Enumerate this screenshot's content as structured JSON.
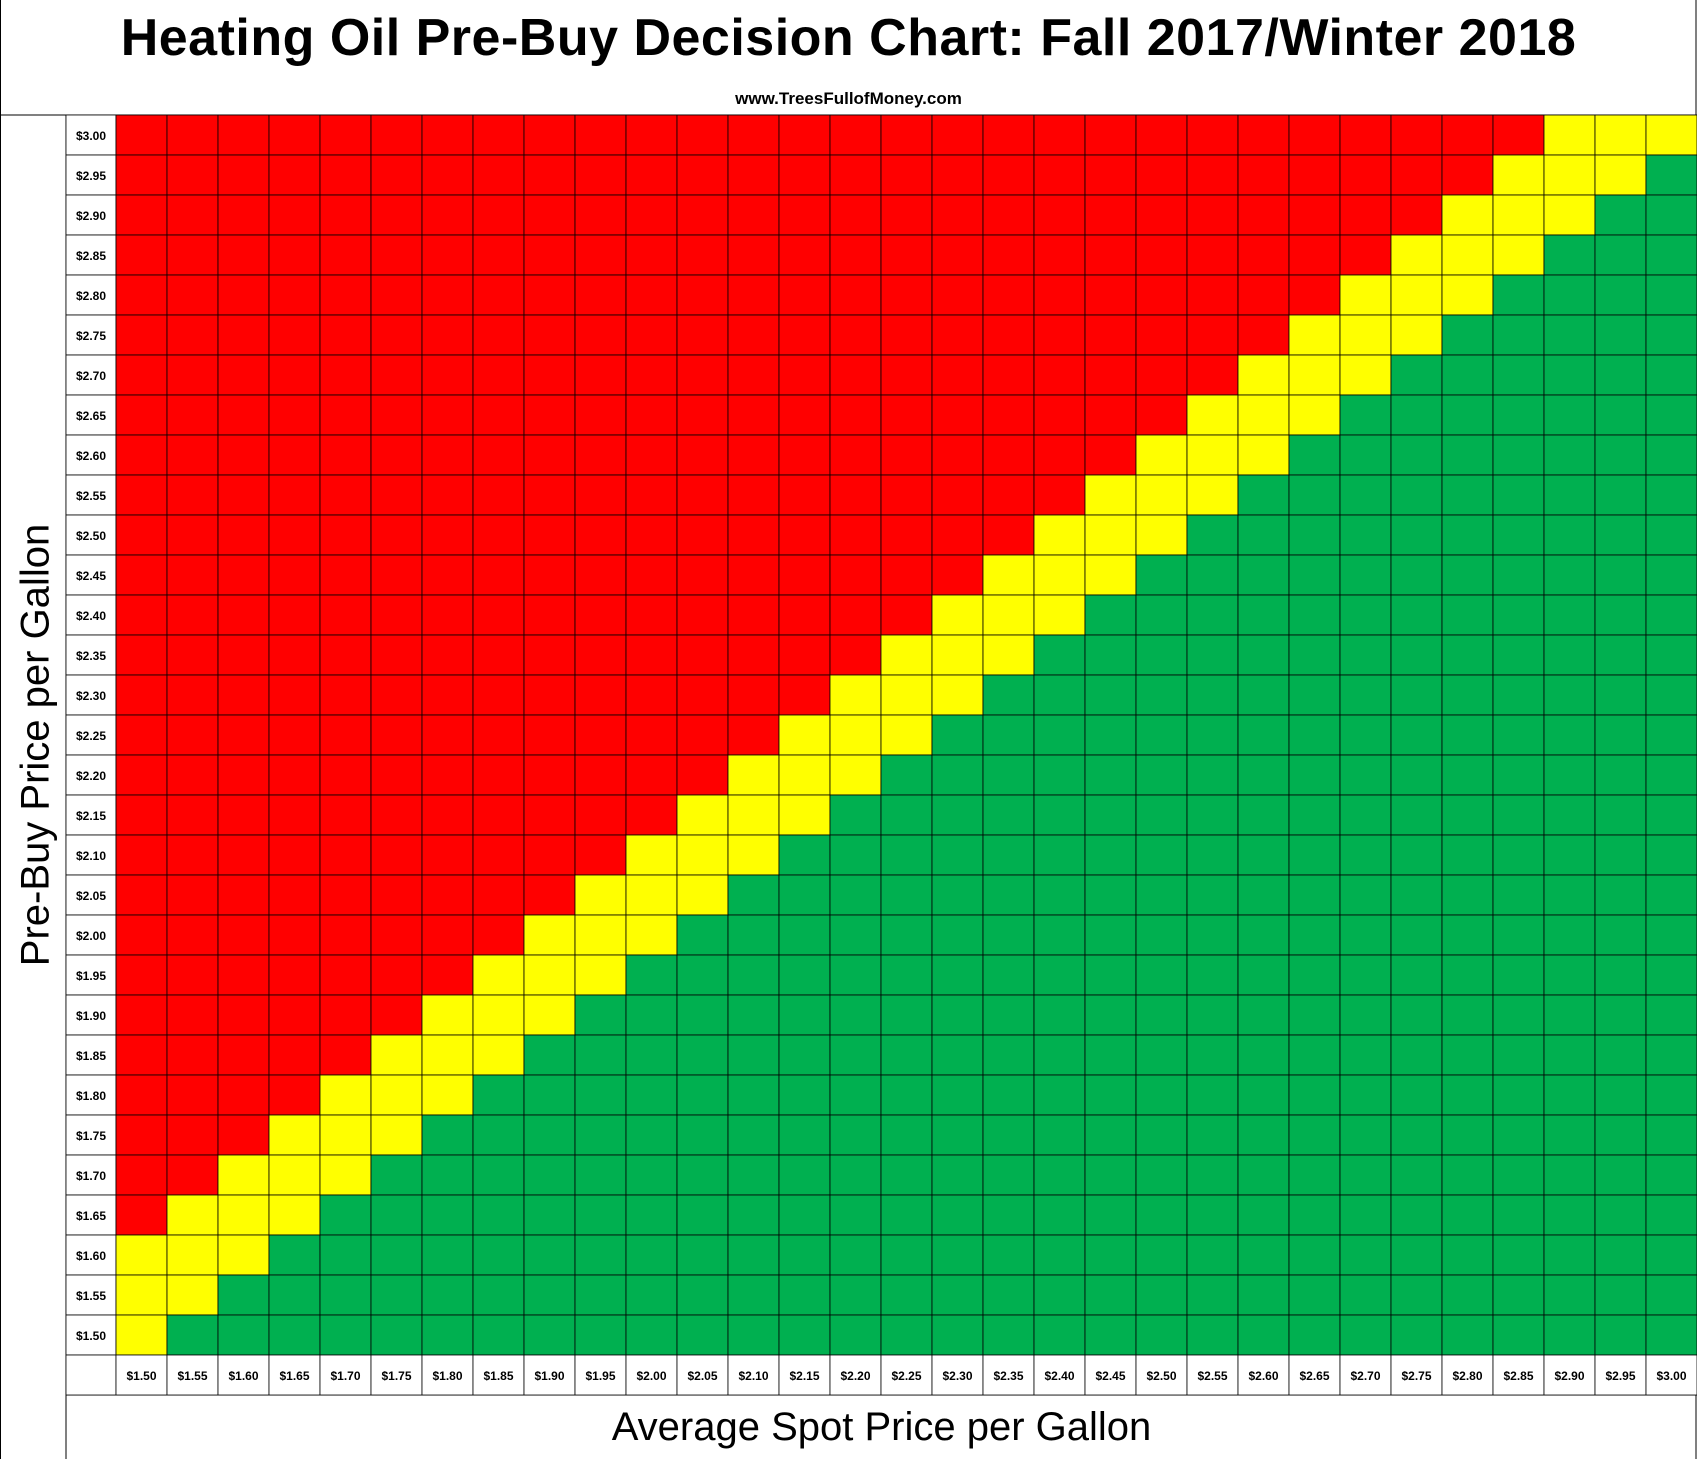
{
  "title": "Heating Oil Pre-Buy Decision Chart: Fall 2017/Winter 2018",
  "subtitle": "www.TreesFullofMoney.com",
  "chart_data": {
    "type": "heatmap",
    "title": "Heating Oil Pre-Buy Decision Chart: Fall 2017/Winter 2018",
    "xlabel": "Average Spot Price per Gallon",
    "ylabel": "Pre-Buy Price per Gallon",
    "x_categories": [
      "$1.50",
      "$1.55",
      "$1.60",
      "$1.65",
      "$1.70",
      "$1.75",
      "$1.80",
      "$1.85",
      "$1.90",
      "$1.95",
      "$2.00",
      "$2.05",
      "$2.10",
      "$2.15",
      "$2.20",
      "$2.25",
      "$2.30",
      "$2.35",
      "$2.40",
      "$2.45",
      "$2.50",
      "$2.55",
      "$2.60",
      "$2.65",
      "$2.70",
      "$2.75",
      "$2.80",
      "$2.85",
      "$2.90",
      "$2.95",
      "$3.00"
    ],
    "y_categories": [
      "$3.00",
      "$2.95",
      "$2.90",
      "$2.85",
      "$2.80",
      "$2.75",
      "$2.70",
      "$2.65",
      "$2.60",
      "$2.55",
      "$2.50",
      "$2.45",
      "$2.40",
      "$2.35",
      "$2.30",
      "$2.25",
      "$2.20",
      "$2.15",
      "$2.10",
      "$2.05",
      "$2.00",
      "$1.95",
      "$1.90",
      "$1.85",
      "$1.80",
      "$1.75",
      "$1.70",
      "$1.65",
      "$1.60",
      "$1.55",
      "$1.50"
    ],
    "rule": "Each cell colored by pre-buy price minus average spot price: difference >= $0.15 red, $0.00 to $0.10 yellow, <= -$0.05 green",
    "colors": {
      "red": "#ff0000",
      "yellow": "#ffff00",
      "green": "#00b050"
    },
    "grid": true
  }
}
